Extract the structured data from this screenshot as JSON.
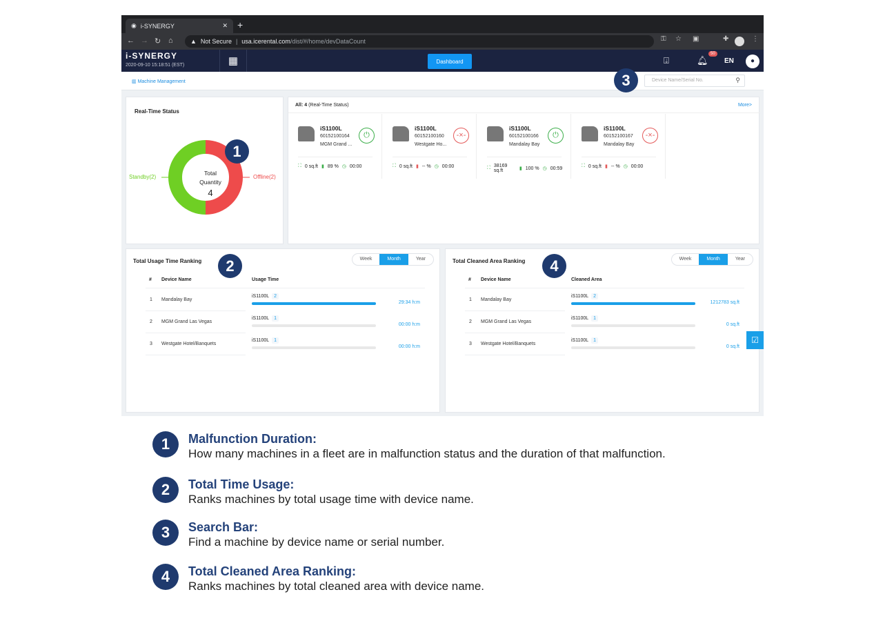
{
  "browser": {
    "tab_title": "i-SYNERGY",
    "security": "Not Secure",
    "url_host": "usa.icerental.com",
    "url_path": "/dist/#/home/devDataCount"
  },
  "app": {
    "brand": "i-SYNERGY",
    "datetime": "2020-09-10 15:18:51  (EST)",
    "dashboard_label": "Dashboard",
    "notification_count": "50",
    "language": "EN"
  },
  "subheader": {
    "breadcrumb": "Machine Management",
    "search_placeholder": "Device Name/Serial No."
  },
  "realtime": {
    "title": "Real-Time Status",
    "center_label_1": "Total",
    "center_label_2": "Quantity",
    "total": "4",
    "standby_label": "Standby(2)",
    "offline_label": "Offline(2)",
    "standby_count": 2,
    "offline_count": 2,
    "standby_color": "#6fcf24",
    "offline_color": "#ee4b4b"
  },
  "devices": {
    "header_bold": "All: 4",
    "header_rest": " (Real-Time Status)",
    "more": "More>",
    "items": [
      {
        "model": "iS1100L",
        "serial": "60152100164",
        "location": "MGM Grand ...",
        "status": "standby",
        "area": "0 sq.ft",
        "battery": "89 %",
        "time": "00:00"
      },
      {
        "model": "iS1100L",
        "serial": "60152100160",
        "location": "Westgate Ho...",
        "status": "offline",
        "area": "0 sq.ft",
        "battery": "-- %",
        "time": "00:00"
      },
      {
        "model": "iS1100L",
        "serial": "60152100166",
        "location": "Mandalay Bay",
        "status": "standby",
        "area": "38169 sq.ft",
        "battery": "100 %",
        "time": "00:59"
      },
      {
        "model": "iS1100L",
        "serial": "60152100167",
        "location": "Mandalay Bay",
        "status": "offline",
        "area": "0 sq.ft",
        "battery": "-- %",
        "time": "00:00"
      }
    ]
  },
  "usage": {
    "title": "Total Usage Time Ranking",
    "periods": [
      "Week",
      "Month",
      "Year"
    ],
    "active_period": "Month",
    "col_num": "#",
    "col_name": "Device Name",
    "col_value": "Usage Time",
    "rows": [
      {
        "rank": "1",
        "name": "Mandalay Bay",
        "model": "iS1100L",
        "count": "2",
        "value": "29:34 h:m",
        "pct": 100
      },
      {
        "rank": "2",
        "name": "MGM Grand Las Vegas",
        "model": "iS1100L",
        "count": "1",
        "value": "00:00 h:m",
        "pct": 0
      },
      {
        "rank": "3",
        "name": "Westgate Hotel/Banquets",
        "model": "iS1100L",
        "count": "1",
        "value": "00:00 h:m",
        "pct": 0
      }
    ]
  },
  "area": {
    "title": "Total Cleaned Area Ranking",
    "periods": [
      "Week",
      "Month",
      "Year"
    ],
    "active_period": "Month",
    "col_num": "#",
    "col_name": "Device Name",
    "col_value": "Cleaned Area",
    "rows": [
      {
        "rank": "1",
        "name": "Mandalay Bay",
        "model": "iS1100L",
        "count": "2",
        "value": "1212783 sq.ft",
        "pct": 100
      },
      {
        "rank": "2",
        "name": "MGM Grand Las Vegas",
        "model": "iS1100L",
        "count": "1",
        "value": "0 sq.ft",
        "pct": 0
      },
      {
        "rank": "3",
        "name": "Westgate Hotel/Banquets",
        "model": "iS1100L",
        "count": "1",
        "value": "0 sq.ft",
        "pct": 0
      }
    ]
  },
  "callouts": [
    {
      "num": "1",
      "title": "Malfunction Duration:",
      "desc": "How many machines in a fleet are in malfunction status and the duration of that malfunction."
    },
    {
      "num": "2",
      "title": "Total Time Usage:",
      "desc": "Ranks machines by total usage time with device name."
    },
    {
      "num": "3",
      "title": "Search Bar:",
      "desc": "Find a machine by device name or serial number."
    },
    {
      "num": "4",
      "title": "Total Cleaned Area Ranking:",
      "desc": "Ranks machines by total cleaned area with device name."
    }
  ]
}
